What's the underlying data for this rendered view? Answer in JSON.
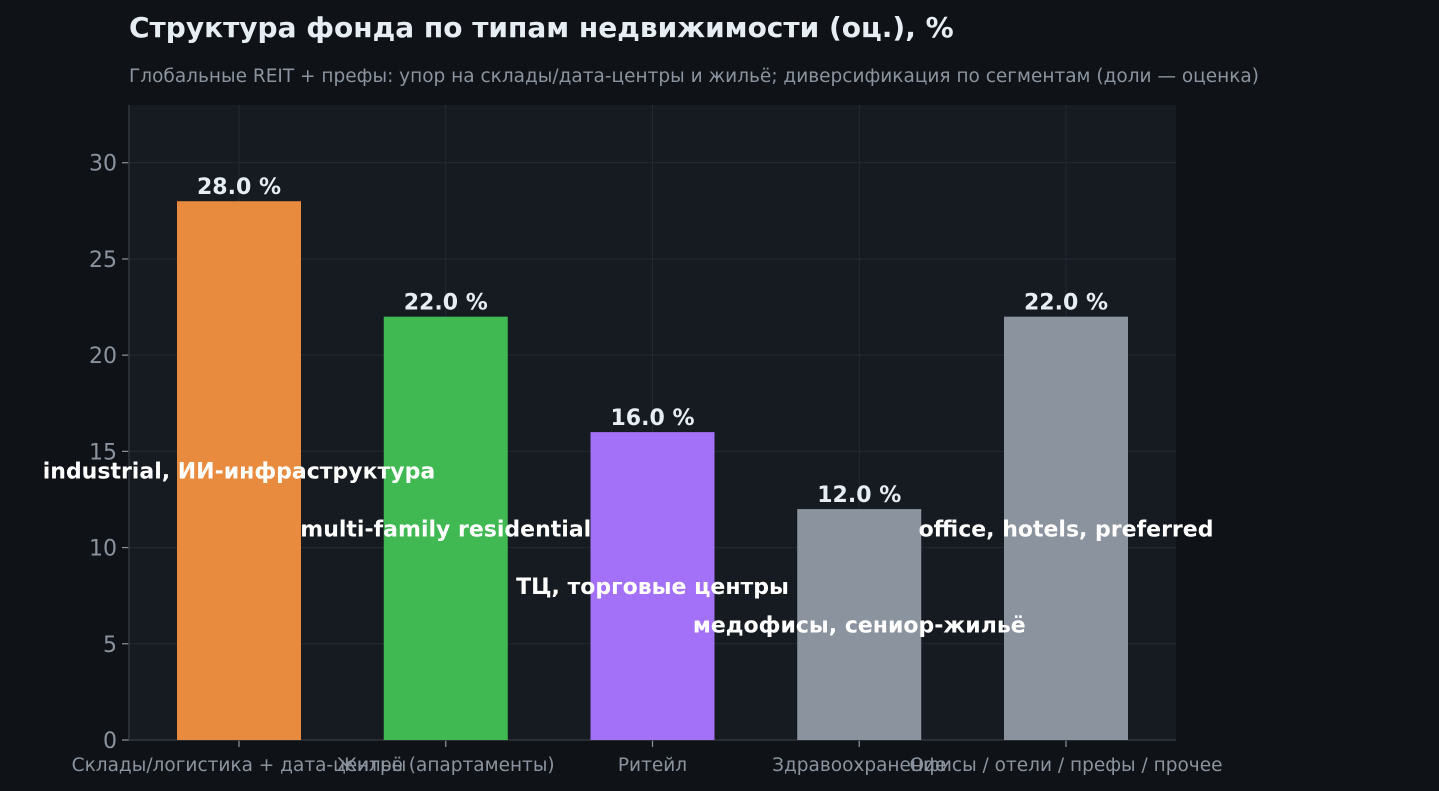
{
  "chart_data": {
    "type": "bar",
    "title": "Структура фонда по типам недвижимости (оц.), %",
    "subtitle": "Глобальные REIT + префы: упор на склады/дата-центры и жильё; диверсификация по сегментам (доли — оценка)",
    "xlabel": "",
    "ylabel": "",
    "ylim": [
      0,
      33
    ],
    "yticks": [
      0,
      5,
      10,
      15,
      20,
      25,
      30
    ],
    "grid": true,
    "categories": [
      "Склады/логистика + дата-центры",
      "Жильё (апартаменты)",
      "Ритейл",
      "Здравоохранение",
      "Офисы / отели / префы / прочее"
    ],
    "values": [
      28.0,
      22.0,
      16.0,
      12.0,
      22.0
    ],
    "value_labels": [
      "28.0 %",
      "22.0 %",
      "16.0 %",
      "12.0 %",
      "22.0 %"
    ],
    "colors": [
      "#e88b3e",
      "#41b953",
      "#a371f7",
      "#8b949e",
      "#8b949e"
    ],
    "annotations": [
      {
        "text": "industrial, ИИ-инфраструктура",
        "bar": 0,
        "y": 14.0
      },
      {
        "text": "multi-family residential",
        "bar": 1,
        "y": 11.0
      },
      {
        "text": "ТЦ, торговые центры",
        "bar": 2,
        "y": 8.0
      },
      {
        "text": "медофисы, сениор-жильё",
        "bar": 3,
        "y": 6.0
      },
      {
        "text": "office, hotels, preferred",
        "bar": 4,
        "y": 11.0
      }
    ]
  },
  "colors": {
    "page_bg": "#0f1317",
    "plot_bg": "#161b22",
    "grid": "#232a33",
    "axis": "#30363d",
    "muted_text": "#8b949e",
    "bright_text": "#e6edf3"
  }
}
